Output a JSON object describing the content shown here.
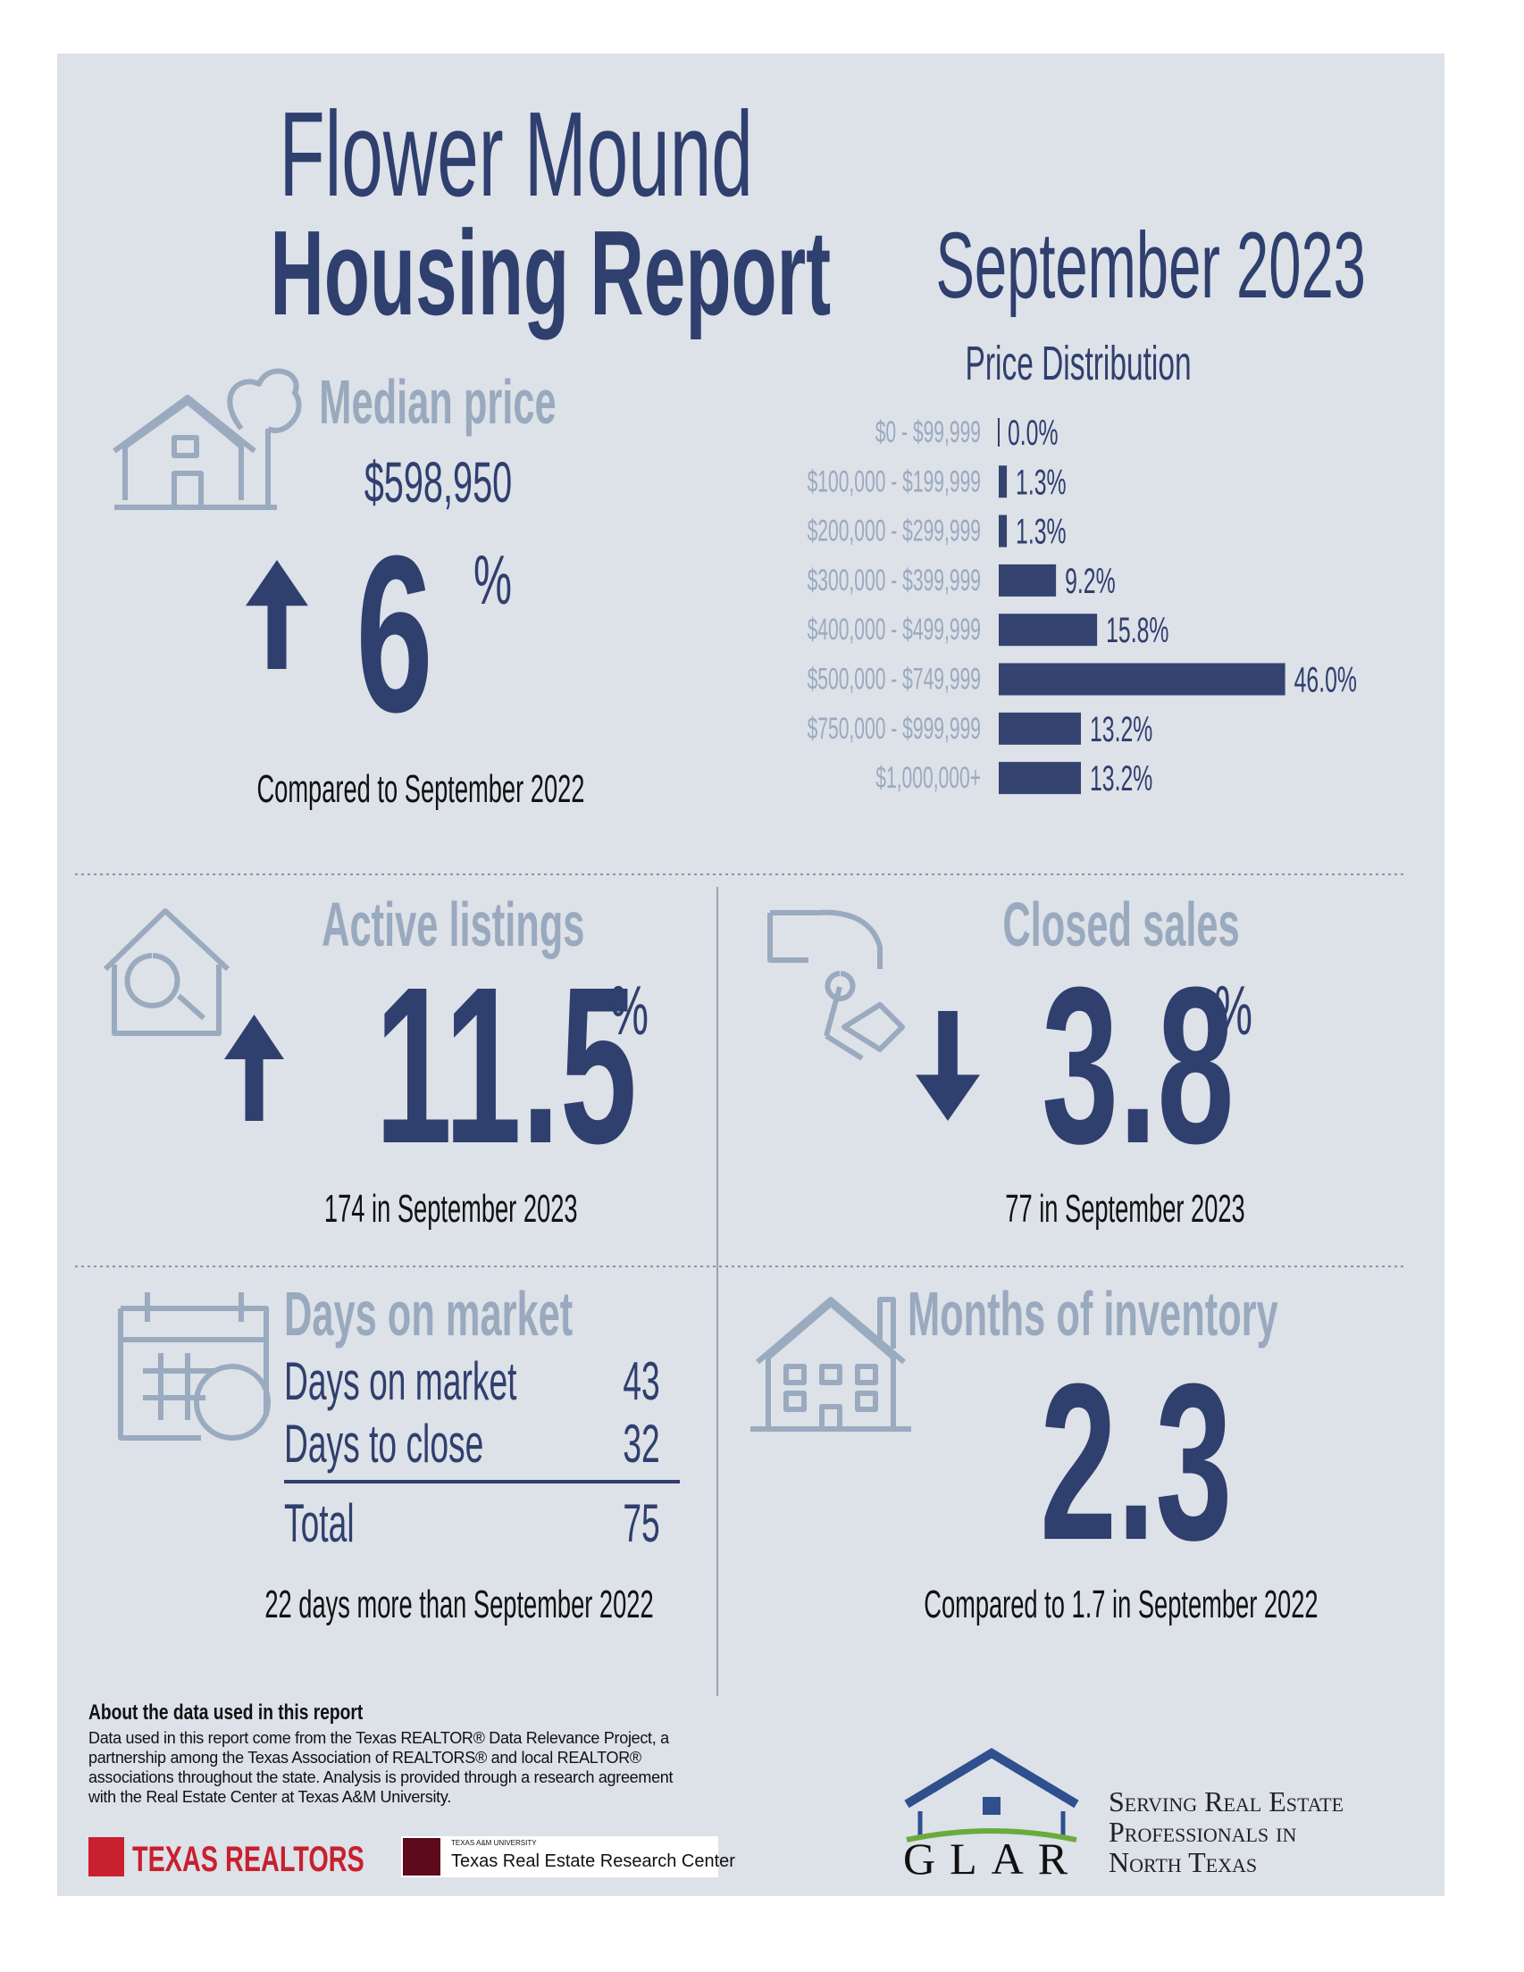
{
  "header": {
    "title_line1": "Flower Mound",
    "title_line2": "Housing Report",
    "period": "September 2023"
  },
  "median_price": {
    "label": "Median price",
    "value": "$598,950",
    "change": "6",
    "unit": "%",
    "direction": "up",
    "comparison": "Compared to September 2022"
  },
  "chart_data": {
    "type": "bar",
    "orientation": "horizontal",
    "title": "Price Distribution",
    "categories": [
      "$0 - $99,999",
      "$100,000 - $199,999",
      "$200,000 - $299,999",
      "$300,000 - $399,999",
      "$400,000 - $499,999",
      "$500,000 - $749,999",
      "$750,000 - $999,999",
      "$1,000,000+"
    ],
    "values": [
      0.0,
      1.3,
      1.3,
      9.2,
      15.8,
      46.0,
      13.2,
      13.2
    ],
    "value_labels": [
      "0.0%",
      "1.3%",
      "1.3%",
      "9.2%",
      "15.8%",
      "46.0%",
      "13.2%",
      "13.2%"
    ],
    "color": "#34446f"
  },
  "active_listings": {
    "label": "Active listings",
    "change": "11.5",
    "unit": "%",
    "direction": "up",
    "detail": "174 in September 2023"
  },
  "closed_sales": {
    "label": "Closed sales",
    "change": "3.8",
    "unit": "%",
    "direction": "down",
    "detail": "77 in September 2023"
  },
  "days_on_market": {
    "label": "Days on market",
    "rows": [
      [
        "Days on market",
        43
      ],
      [
        "Days to close",
        32
      ],
      [
        "Total",
        75
      ]
    ],
    "comparison": "22 days more than September 2022"
  },
  "months_of_inventory": {
    "label": "Months of inventory",
    "value": "2.3",
    "comparison": "Compared to 1.7 in September 2022"
  },
  "footer": {
    "about_title": "About the data used in this report",
    "about_text": "Data used in this report come from the Texas REALTOR® Data Relevance Project, a partnership among the Texas Association of REALTORS® and local REALTOR® associations throughout the state. Analysis is provided through a research agreement with the Real Estate Center at Texas A&M University.",
    "logos": [
      "TEXAS REALTORS",
      "TEXAS A&M UNIVERSITY",
      "Texas Real Estate Research Center",
      "GLAR"
    ],
    "tagline": [
      "Serving Real Estate",
      "Professionals in",
      "North Texas"
    ]
  }
}
